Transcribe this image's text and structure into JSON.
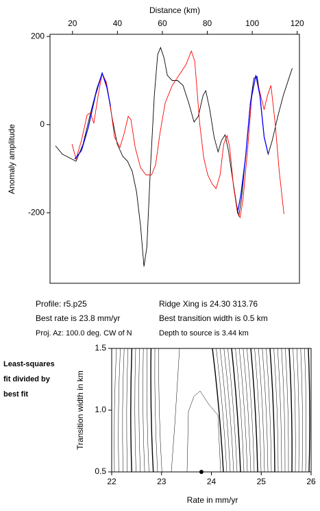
{
  "chart_data": [
    {
      "type": "line",
      "xlabel": "Distance (km)",
      "ylabel": "Anomaly amplitude",
      "xlim": [
        10,
        121
      ],
      "ylim": [
        -360,
        205
      ],
      "xticks": [
        20,
        40,
        60,
        80,
        100,
        120
      ],
      "yticks": [
        -200,
        0,
        200
      ],
      "series": [
        {
          "color": "#000000",
          "x": [
            12.4,
            15.5,
            18.5,
            21.6,
            24.7,
            27.7,
            30.8,
            33.2,
            35.3,
            37.5,
            39.9,
            42.4,
            44.5,
            46.6,
            48.5,
            50.3,
            51.8,
            53.1,
            54.6,
            56.4,
            57.9,
            59.2,
            60.7,
            62.2,
            64.4,
            66.8,
            69.2,
            71.7,
            74.1,
            76.0,
            78.1,
            79.3,
            81.1,
            83.0,
            84.8,
            86.3,
            87.9,
            89.4,
            91.2,
            93.1,
            94.0,
            95.2,
            97.0,
            99.2,
            100.7,
            102.2,
            103.4,
            105.3,
            107.1,
            108.9,
            111.4,
            113.8,
            116.3,
            117.8
          ],
          "values": [
            -48,
            -67,
            -75,
            -83,
            -44,
            19,
            81,
            117,
            89,
            19,
            -44,
            -72,
            -83,
            -106,
            -153,
            -231,
            -322,
            -278,
            -106,
            66,
            159,
            175,
            152,
            112,
            100,
            100,
            89,
            50,
            6,
            19,
            66,
            77,
            34,
            -28,
            -62,
            -36,
            -23,
            -59,
            -122,
            -184,
            -208,
            -169,
            -75,
            50,
            105,
            109,
            66,
            -28,
            -67,
            -36,
            19,
            66,
            105,
            128
          ]
        },
        {
          "color": "#ff0000",
          "x": [
            19.8,
            21.6,
            24.0,
            26.5,
            28.0,
            29.5,
            31.4,
            33.2,
            35.0,
            36.9,
            38.7,
            41.1,
            43.0,
            44.8,
            46.0,
            47.9,
            50.3,
            52.7,
            55.2,
            57.0,
            58.9,
            61.3,
            64.4,
            67.4,
            70.5,
            72.9,
            74.4,
            76.6,
            78.4,
            80.2,
            82.1,
            83.9,
            85.7,
            87.3,
            88.8,
            90.0,
            91.6,
            93.4,
            94.6,
            95.9,
            98.0,
            99.8,
            101.6,
            103.4,
            105.3,
            106.8,
            108.3,
            110.2,
            112.0,
            114.1
          ],
          "values": [
            -44,
            -78,
            -36,
            22,
            27,
            3,
            66,
            116,
            97,
            42,
            -28,
            -52,
            -20,
            19,
            11,
            -52,
            -98,
            -114,
            -114,
            -91,
            -20,
            50,
            89,
            112,
            136,
            167,
            144,
            3,
            -75,
            -114,
            -134,
            -145,
            -114,
            -44,
            -25,
            -52,
            -138,
            -200,
            -211,
            -169,
            -52,
            66,
            112,
            73,
            34,
            66,
            89,
            3,
            -106,
            -203
          ]
        },
        {
          "color": "#0000ff",
          "x": [
            21.0,
            24.0,
            27.1,
            30.2,
            33.2,
            35.3,
            36.9,
            null,
            93.4,
            94.9,
            97.0,
            99.2,
            101.6,
            103.4,
            105.3,
            107.1
          ],
          "values": [
            -78,
            -59,
            -5,
            66,
            117,
            84,
            42,
            null,
            -200,
            -161,
            -75,
            50,
            112,
            66,
            -28,
            -67
          ]
        }
      ]
    },
    {
      "type": "scatter",
      "xlabel": "Rate in mm/yr",
      "ylabel": "Transition width in km",
      "annotation": [
        "Least-squares",
        "fit divided by",
        "best fit"
      ],
      "xlim": [
        22,
        26
      ],
      "ylim": [
        0.5,
        1.5
      ],
      "xticks": [
        22,
        23,
        24,
        25,
        26
      ],
      "yticks": [
        0.5,
        {
          "value": 1,
          "label": "1.0"
        },
        1.5
      ],
      "x": [
        23.8
      ],
      "values": [
        0.5
      ],
      "color": "#000000"
    }
  ],
  "info": {
    "left": [
      "Profile: r5.p25",
      "Best rate is 23.8 mm/yr",
      "Proj. Az: 100.0 deg. CW of N"
    ],
    "right": [
      "Ridge Xing is 24.30 313.76",
      "Best transition width is 0.5 km",
      "Depth to source is   3.44 km"
    ]
  }
}
